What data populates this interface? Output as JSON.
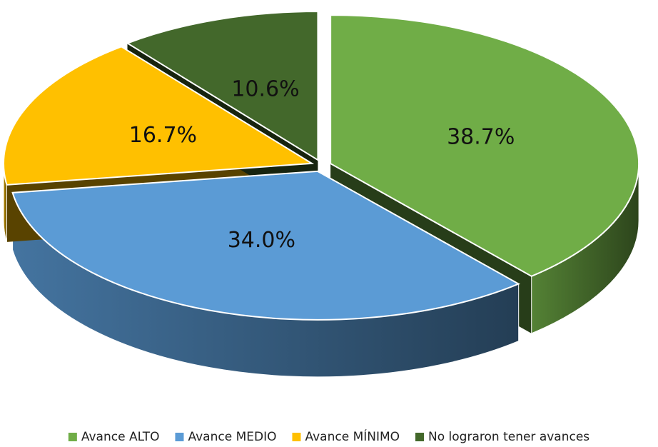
{
  "chart_data": {
    "type": "pie",
    "categories": [
      "Avance ALTO",
      "Avance MEDIO",
      "Avance MÍNIMO",
      "No lograron tener avances"
    ],
    "values": [
      38.7,
      34.0,
      16.7,
      10.6
    ],
    "value_labels": [
      "38.7%",
      "34.0%",
      "16.7%",
      "10.6%"
    ],
    "colors": [
      "#70ad47",
      "#5b9bd5",
      "#ffc000",
      "#43682b"
    ],
    "legend": "bottom"
  }
}
